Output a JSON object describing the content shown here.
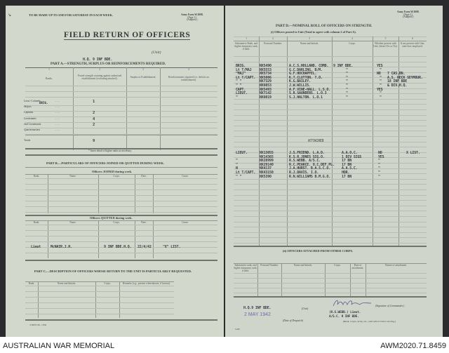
{
  "left": {
    "top_note": "TO BE MADE UP TO AND FOR SATURDAY IN EACH WEEK.",
    "form_ref": [
      "Army Form W.3008.",
      "(Page 1.)",
      "(Adapted.)"
    ],
    "title": "FIELD RETURN OF OFFICERS",
    "unit_label": "(Unit)",
    "unit_value": "H.Q. 9 INF BDE.",
    "part_a": {
      "heading": "PART A.—STRENGTH, SURPLUS OR REINFORCEMENTS REQUIRED.",
      "col_numbers": [
        "1",
        "2",
        "3",
        "4"
      ],
      "col_headers": [
        "Ranks.",
        "Posted strength counting against authorised establishment (excluding attached).",
        "Surplus to Establishment.",
        "Reinforcements required (i.e. deficits on establishment)."
      ],
      "rows": [
        {
          "rank": "Lieut.-Colonels",
          "typed": "BRIG.",
          "posted": "1"
        },
        {
          "rank": "Majors",
          "posted": ""
        },
        {
          "rank": "Captains",
          "posted": "2"
        },
        {
          "rank": "Lieutenants",
          "posted": "4"
        },
        {
          "rank": "2nd Lieutenants",
          "posted": "2"
        },
        {
          "rank": "Quartermasters",
          "posted": ""
        }
      ],
      "totals_label": "Totals",
      "totals_value": "9",
      "footnote": "* Insert detail of higher ranks as necessary."
    },
    "part_b": {
      "heading": "PART B.—PARTICULARS OF OFFICERS JOINED OR QUITTED DURING WEEK.",
      "joined_heading": "Officers JOINED during week.",
      "quitted_heading": "Officers QUITTED during week.",
      "columns": [
        "Rank.",
        "Name.",
        "Corps.",
        "Date.",
        "Cause."
      ],
      "quitted_rows": [
        {
          "rank": "Lieut",
          "name": "McNAIR.J.H.",
          "corps": "9 INF BDE.H.Q.",
          "date": "22/4/42",
          "cause": "\"X\" LIST."
        }
      ]
    },
    "part_c": {
      "heading": "PART C.—DESCRIPTION OF OFFICERS WHOSE RETURN TO THE UNIT IS PARTICULARLY REQUESTED.",
      "columns": [
        "Rank.",
        "Name and Initials.",
        "Corps.",
        "Remarks (e.g., present whereabouts, if known)."
      ]
    },
    "print_code": "3/1005/5.39—7,650"
  },
  "right": {
    "form_ref": [
      "Army Form W.3008.",
      "(Page 2.)",
      "(Adapted.)"
    ],
    "part_d_heading": "PART D.—NOMINAL ROLL OF OFFICERS ON STRENGTH.",
    "sub_i": "(i) Officers posted to Unit (Total to agree with column 2 of Part A).",
    "col_numbers": [
      "1",
      "2",
      "3",
      "4",
      "5",
      "6"
    ],
    "columns": [
      "Substantive Rank, and higher temporary rank, if held.",
      "Personal Number.",
      "Name and Initials.",
      "Corps.",
      "Whether present with Unit. (Insert Yes or No).",
      "If not present with Unit, state how employed."
    ],
    "rows": [
      {
        "rank": "BRIG.",
        "number": "NX5490",
        "name": "A.C.S.HOLLAND.  COMD.",
        "corps": "9 INF BDE.",
        "present": "YES",
        "employed": ""
      },
      {
        "rank": "Lt T/MAJ",
        "number": "NX5553",
        "name": "G.C.DARLING.     B/M.",
        "corps": "\"",
        "present": "\"",
        "employed": ""
      },
      {
        "rank": "\"MAJ\"",
        "number": "NX5734",
        "name": "G.F.HOCHAPFEL.",
        "corps": "\"",
        "present": "NO",
        "employed": "7 CAS.BN."
      },
      {
        "rank": "Lt T/CAPT.",
        "number": "NX5006",
        "name": "K.T.CLUTTON.    T.O.",
        "corps": "\"",
        "present": "\"",
        "employed": "A.S. NECK SEYMOUR."
      },
      {
        "rank": "\"    \"",
        "number": "NX7329",
        "name": "K.G.BAILEY.",
        "corps": "\"",
        "present": "\"",
        "employed": "18 INF BDE"
      },
      {
        "rank": "\"    \"",
        "number": "NX6053",
        "name": "J.W.WILLIS.",
        "corps": "\"",
        "present": "\"",
        "employed": "& DIV.H.Q."
      },
      {
        "rank": "CAPT.",
        "number": "NX5493",
        "name": "A.F.VINE-HALL. L.S.O.",
        "corps": "\"",
        "present": "YES",
        "employed": ""
      },
      {
        "rank": "LIEUT.",
        "number": "NX7142",
        "name": "S.R.SAUNDERS.   L.O.3",
        "corps": "\"",
        "present": "\"",
        "employed": ""
      },
      {
        "rank": "\"",
        "number": "NX6019",
        "name": "S.J.HALTON.     L.O.1",
        "corps": "\"",
        "present": "\"",
        "employed": ""
      }
    ],
    "attached_label": "ATTACHED",
    "attached_rows": [
      {
        "rank": "LIEUT.",
        "number": "NX13055",
        "name": "J.S.FRIEND.  L.A.D.",
        "corps": "A.A.O.C.",
        "present": "NO",
        "employed": "X LIST."
      },
      {
        "rank": "",
        "number": "NX14365",
        "name": "K.S.R.JONES    SIG.O.",
        "corps": "1 DIV SIGS",
        "present": "YES",
        "employed": ""
      },
      {
        "rank": "\"",
        "number": "NX28999",
        "name": "R.S.WEBB.    A/S.C.",
        "corps": "17 BN",
        "present": "\"",
        "employed": ""
      },
      {
        "rank": "\"",
        "number": "NX29140",
        "name": "R.C.PEARCE.  O.C.DEF.PL.",
        "corps": "17 BN",
        "present": "\"",
        "employed": ""
      },
      {
        "rank": "N",
        "number": "NX4137",
        "name": "J.A.HURST.  B.A.S.C.O.",
        "corps": "A.A.S.C.",
        "present": "\"",
        "employed": ""
      },
      {
        "rank": "Lt T/CAPT.",
        "number": "NX43150",
        "name": "R.J.DAVIS.   I.O.",
        "corps": "HQR.",
        "present": "\"",
        "employed": ""
      },
      {
        "rank": "\"   \"",
        "number": "NX5390",
        "name": "R.N.WILLIAMS B.M.G.O.",
        "corps": "17 BN",
        "present": "\"",
        "employed": ""
      }
    ],
    "sub_ii": "(ii) OFFICERS ATTACHED FROM OTHER CORPS.",
    "columns_ii": [
      "Substantive rank, and higher temporary rank, if held.",
      "Personal Number.",
      "Name and Initials.",
      "Corps.",
      "Date of attachment.",
      "Nature of attachment."
    ],
    "footer": {
      "unit_value": "H.Q.9 INF BDE.",
      "unit_label": "(Unit)",
      "date_stamp": "2 MAY 1942",
      "date_label": "(Date of Despatch)",
      "signature_label": "(Signature of Commander.)",
      "commander_typed": "(R.S.WEBB.)  Lieut.",
      "commander_role": "A/S.C. 9 INF BDE.",
      "rank_label": "(Rank, Corps, Army, etc., with which Unit is serving.)",
      "print_code": "5.265"
    }
  },
  "captions": {
    "left": "AUSTRALIAN WAR MEMORIAL",
    "right": "AWM2020.71.8459"
  },
  "colors": {
    "paper": "#d3d8cd",
    "background": "#2b2b2d",
    "stamp": "#6a6aa8"
  }
}
